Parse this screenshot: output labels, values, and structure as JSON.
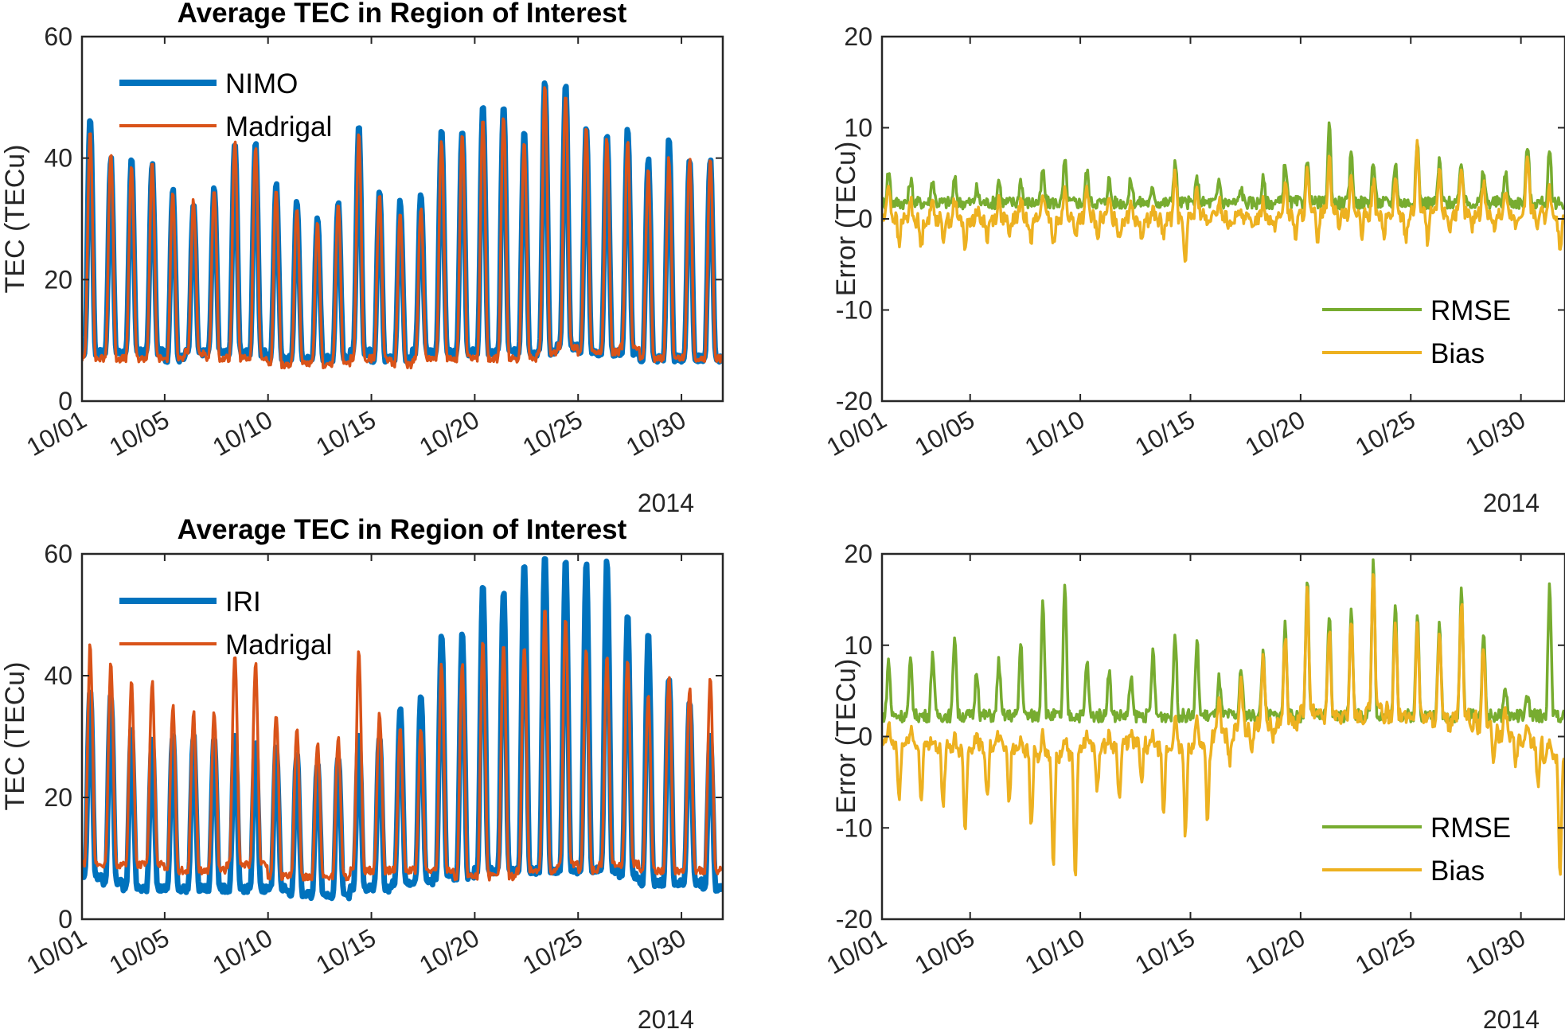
{
  "figure": {
    "panels_count": 4
  },
  "chart_data": [
    {
      "id": "tl",
      "type": "line",
      "title": "Average TEC in Region of Interest",
      "xlabel": "",
      "ylabel": "TEC (TECu)",
      "x_tick_labels": [
        "10/01",
        "10/05",
        "10/10",
        "10/15",
        "10/20",
        "10/25",
        "10/30"
      ],
      "x_tick_days": [
        1,
        5,
        10,
        15,
        20,
        25,
        30
      ],
      "x_range_days": [
        1,
        32
      ],
      "x_secondary_label": "2014",
      "y_tick_labels": [
        "0",
        "20",
        "40",
        "60"
      ],
      "y_ticks": [
        0,
        20,
        40,
        60
      ],
      "ylim": [
        0,
        60
      ],
      "grid": false,
      "legend_position": "top-left",
      "series": [
        {
          "name": "NIMO",
          "color": "#0072BD",
          "daily_peaks": [
            47,
            40,
            40,
            39,
            35,
            33,
            35,
            43,
            43,
            36,
            33,
            30,
            33,
            45,
            35,
            33,
            34,
            45,
            45,
            49,
            49,
            45,
            53,
            52,
            45,
            44,
            45,
            40,
            43,
            40,
            40
          ],
          "daily_minima": [
            8,
            8,
            8,
            8,
            7,
            8,
            8,
            8,
            8,
            7,
            7,
            7,
            7,
            8,
            7,
            7,
            8,
            8,
            8,
            8,
            8,
            8,
            8,
            9,
            8,
            8,
            8,
            7,
            7,
            7,
            7
          ]
        },
        {
          "name": "Madrigal",
          "color": "#D95319",
          "daily_peaks": [
            45,
            41,
            39,
            39,
            34,
            33,
            35,
            43,
            42,
            35,
            32,
            29,
            33,
            44,
            34,
            31,
            32,
            43,
            44,
            47,
            47,
            43,
            52,
            51,
            45,
            43,
            43,
            38,
            40,
            40,
            40
          ],
          "daily_minima": [
            7,
            7,
            7,
            7,
            7,
            8,
            7,
            7,
            7,
            6,
            6,
            6,
            6,
            7,
            7,
            6,
            7,
            7,
            7,
            7,
            7,
            7,
            8,
            9,
            8,
            8,
            9,
            7,
            7,
            7,
            7
          ]
        }
      ]
    },
    {
      "id": "tr",
      "type": "line",
      "title": "",
      "xlabel": "",
      "ylabel": "Error (TECu)",
      "x_tick_labels": [
        "10/01",
        "10/05",
        "10/10",
        "10/15",
        "10/20",
        "10/25",
        "10/30"
      ],
      "x_tick_days": [
        1,
        5,
        10,
        15,
        20,
        25,
        30
      ],
      "x_range_days": [
        1,
        32
      ],
      "x_secondary_label": "2014",
      "y_tick_labels": [
        "-20",
        "-10",
        "0",
        "10",
        "20"
      ],
      "y_ticks": [
        -20,
        -10,
        0,
        10,
        20
      ],
      "ylim": [
        -20,
        20
      ],
      "grid": false,
      "legend_position": "bottom-right",
      "series": [
        {
          "name": "RMSE",
          "color": "#77AC30",
          "daily_peaks": [
            5,
            4,
            4,
            4,
            3,
            4,
            4,
            5,
            6,
            5,
            4,
            4,
            3,
            6,
            4,
            4,
            3,
            4,
            6,
            6,
            10,
            7,
            6,
            6,
            8,
            6,
            6,
            5,
            5,
            8,
            7
          ],
          "baseline": 1.5
        },
        {
          "name": "Bias",
          "color": "#EDB120",
          "daily_peaks": [
            4,
            2,
            2,
            2,
            1,
            2,
            2,
            3,
            3,
            3,
            2,
            2,
            1,
            5,
            3,
            2,
            1,
            2,
            4,
            5,
            7,
            5,
            4,
            4,
            8,
            5,
            5,
            4,
            3,
            7,
            3
          ],
          "daily_minima": [
            -3,
            -3,
            -2,
            -3,
            -2,
            -2,
            -2,
            -3,
            -2,
            -2,
            -2,
            -2,
            -2,
            -5,
            -1,
            -1,
            -1,
            -1,
            -2,
            -2,
            -1,
            -2,
            -2,
            -2,
            -3,
            -1,
            -1,
            -1,
            -1,
            -1,
            -3
          ]
        }
      ]
    },
    {
      "id": "bl",
      "type": "line",
      "title": "Average TEC in Region of Interest",
      "xlabel": "",
      "ylabel": "TEC (TECu)",
      "x_tick_labels": [
        "10/01",
        "10/05",
        "10/10",
        "10/15",
        "10/20",
        "10/25",
        "10/30"
      ],
      "x_tick_days": [
        1,
        5,
        10,
        15,
        20,
        25,
        30
      ],
      "x_range_days": [
        1,
        32
      ],
      "x_secondary_label": "2014",
      "y_tick_labels": [
        "0",
        "20",
        "40",
        "60"
      ],
      "y_ticks": [
        0,
        20,
        40,
        60
      ],
      "ylim": [
        0,
        60
      ],
      "grid": false,
      "legend_position": "top-left",
      "series": [
        {
          "name": "IRI",
          "color": "#0072BD",
          "daily_peaks": [
            38,
            37,
            31,
            30,
            30,
            30,
            30,
            30,
            29,
            28,
            27,
            26,
            27,
            30,
            30,
            35,
            37,
            47,
            47,
            55,
            54,
            59,
            60,
            59,
            59,
            59,
            50,
            47,
            40,
            36,
            30
          ],
          "daily_minima": [
            7,
            6,
            5,
            5,
            5,
            5,
            5,
            5,
            5,
            5,
            4,
            4,
            4,
            5,
            5,
            6,
            6,
            7,
            7,
            8,
            8,
            8,
            8,
            8,
            8,
            8,
            7,
            6,
            6,
            6,
            5
          ]
        },
        {
          "name": "Madrigal",
          "color": "#D95319",
          "daily_peaks": [
            45,
            42,
            39,
            39,
            35,
            34,
            34,
            44,
            42,
            34,
            31,
            29,
            30,
            44,
            34,
            31,
            31,
            42,
            42,
            46,
            45,
            45,
            51,
            50,
            44,
            43,
            43,
            37,
            40,
            38,
            40
          ],
          "daily_minima": [
            9,
            9,
            9,
            9,
            8,
            8,
            8,
            9,
            9,
            7,
            7,
            7,
            7,
            8,
            8,
            8,
            8,
            8,
            7,
            7,
            7,
            8,
            8,
            9,
            8,
            9,
            9,
            8,
            8,
            8,
            8
          ]
        }
      ]
    },
    {
      "id": "br",
      "type": "line",
      "title": "",
      "xlabel": "",
      "ylabel": "Error (TECu)",
      "x_tick_labels": [
        "10/01",
        "10/05",
        "10/10",
        "10/15",
        "10/20",
        "10/25",
        "10/30"
      ],
      "x_tick_days": [
        1,
        5,
        10,
        15,
        20,
        25,
        30
      ],
      "x_range_days": [
        1,
        32
      ],
      "x_secondary_label": "2014",
      "y_tick_labels": [
        "-20",
        "-10",
        "0",
        "10",
        "20"
      ],
      "y_ticks": [
        -20,
        -10,
        0,
        10,
        20
      ],
      "ylim": [
        -20,
        20
      ],
      "grid": false,
      "legend_position": "bottom-right",
      "series": [
        {
          "name": "RMSE",
          "color": "#77AC30",
          "daily_peaks": [
            8,
            8,
            9,
            11,
            7,
            8,
            10,
            15,
            16,
            8,
            7,
            6,
            9,
            11,
            10,
            6,
            7,
            9,
            12,
            17,
            13,
            14,
            19,
            14,
            13,
            12,
            16,
            11,
            5,
            4,
            16
          ],
          "baseline": 2
        },
        {
          "name": "Bias",
          "color": "#EDB120",
          "daily_peaks": [
            1,
            1,
            0,
            0,
            0,
            0,
            0,
            0,
            0,
            0,
            0,
            0,
            0,
            2,
            2,
            4,
            6,
            9,
            11,
            16,
            12,
            13,
            18,
            13,
            12,
            11,
            15,
            10,
            3,
            1,
            0
          ],
          "daily_minima": [
            -7,
            -7,
            -8,
            -10,
            -7,
            -7,
            -10,
            -15,
            -15,
            -6,
            -7,
            -5,
            -9,
            -11,
            -9,
            -3,
            -1,
            0,
            1,
            2,
            2,
            2,
            2,
            2,
            2,
            1,
            0,
            -3,
            -3,
            -5,
            -16
          ]
        }
      ]
    }
  ]
}
